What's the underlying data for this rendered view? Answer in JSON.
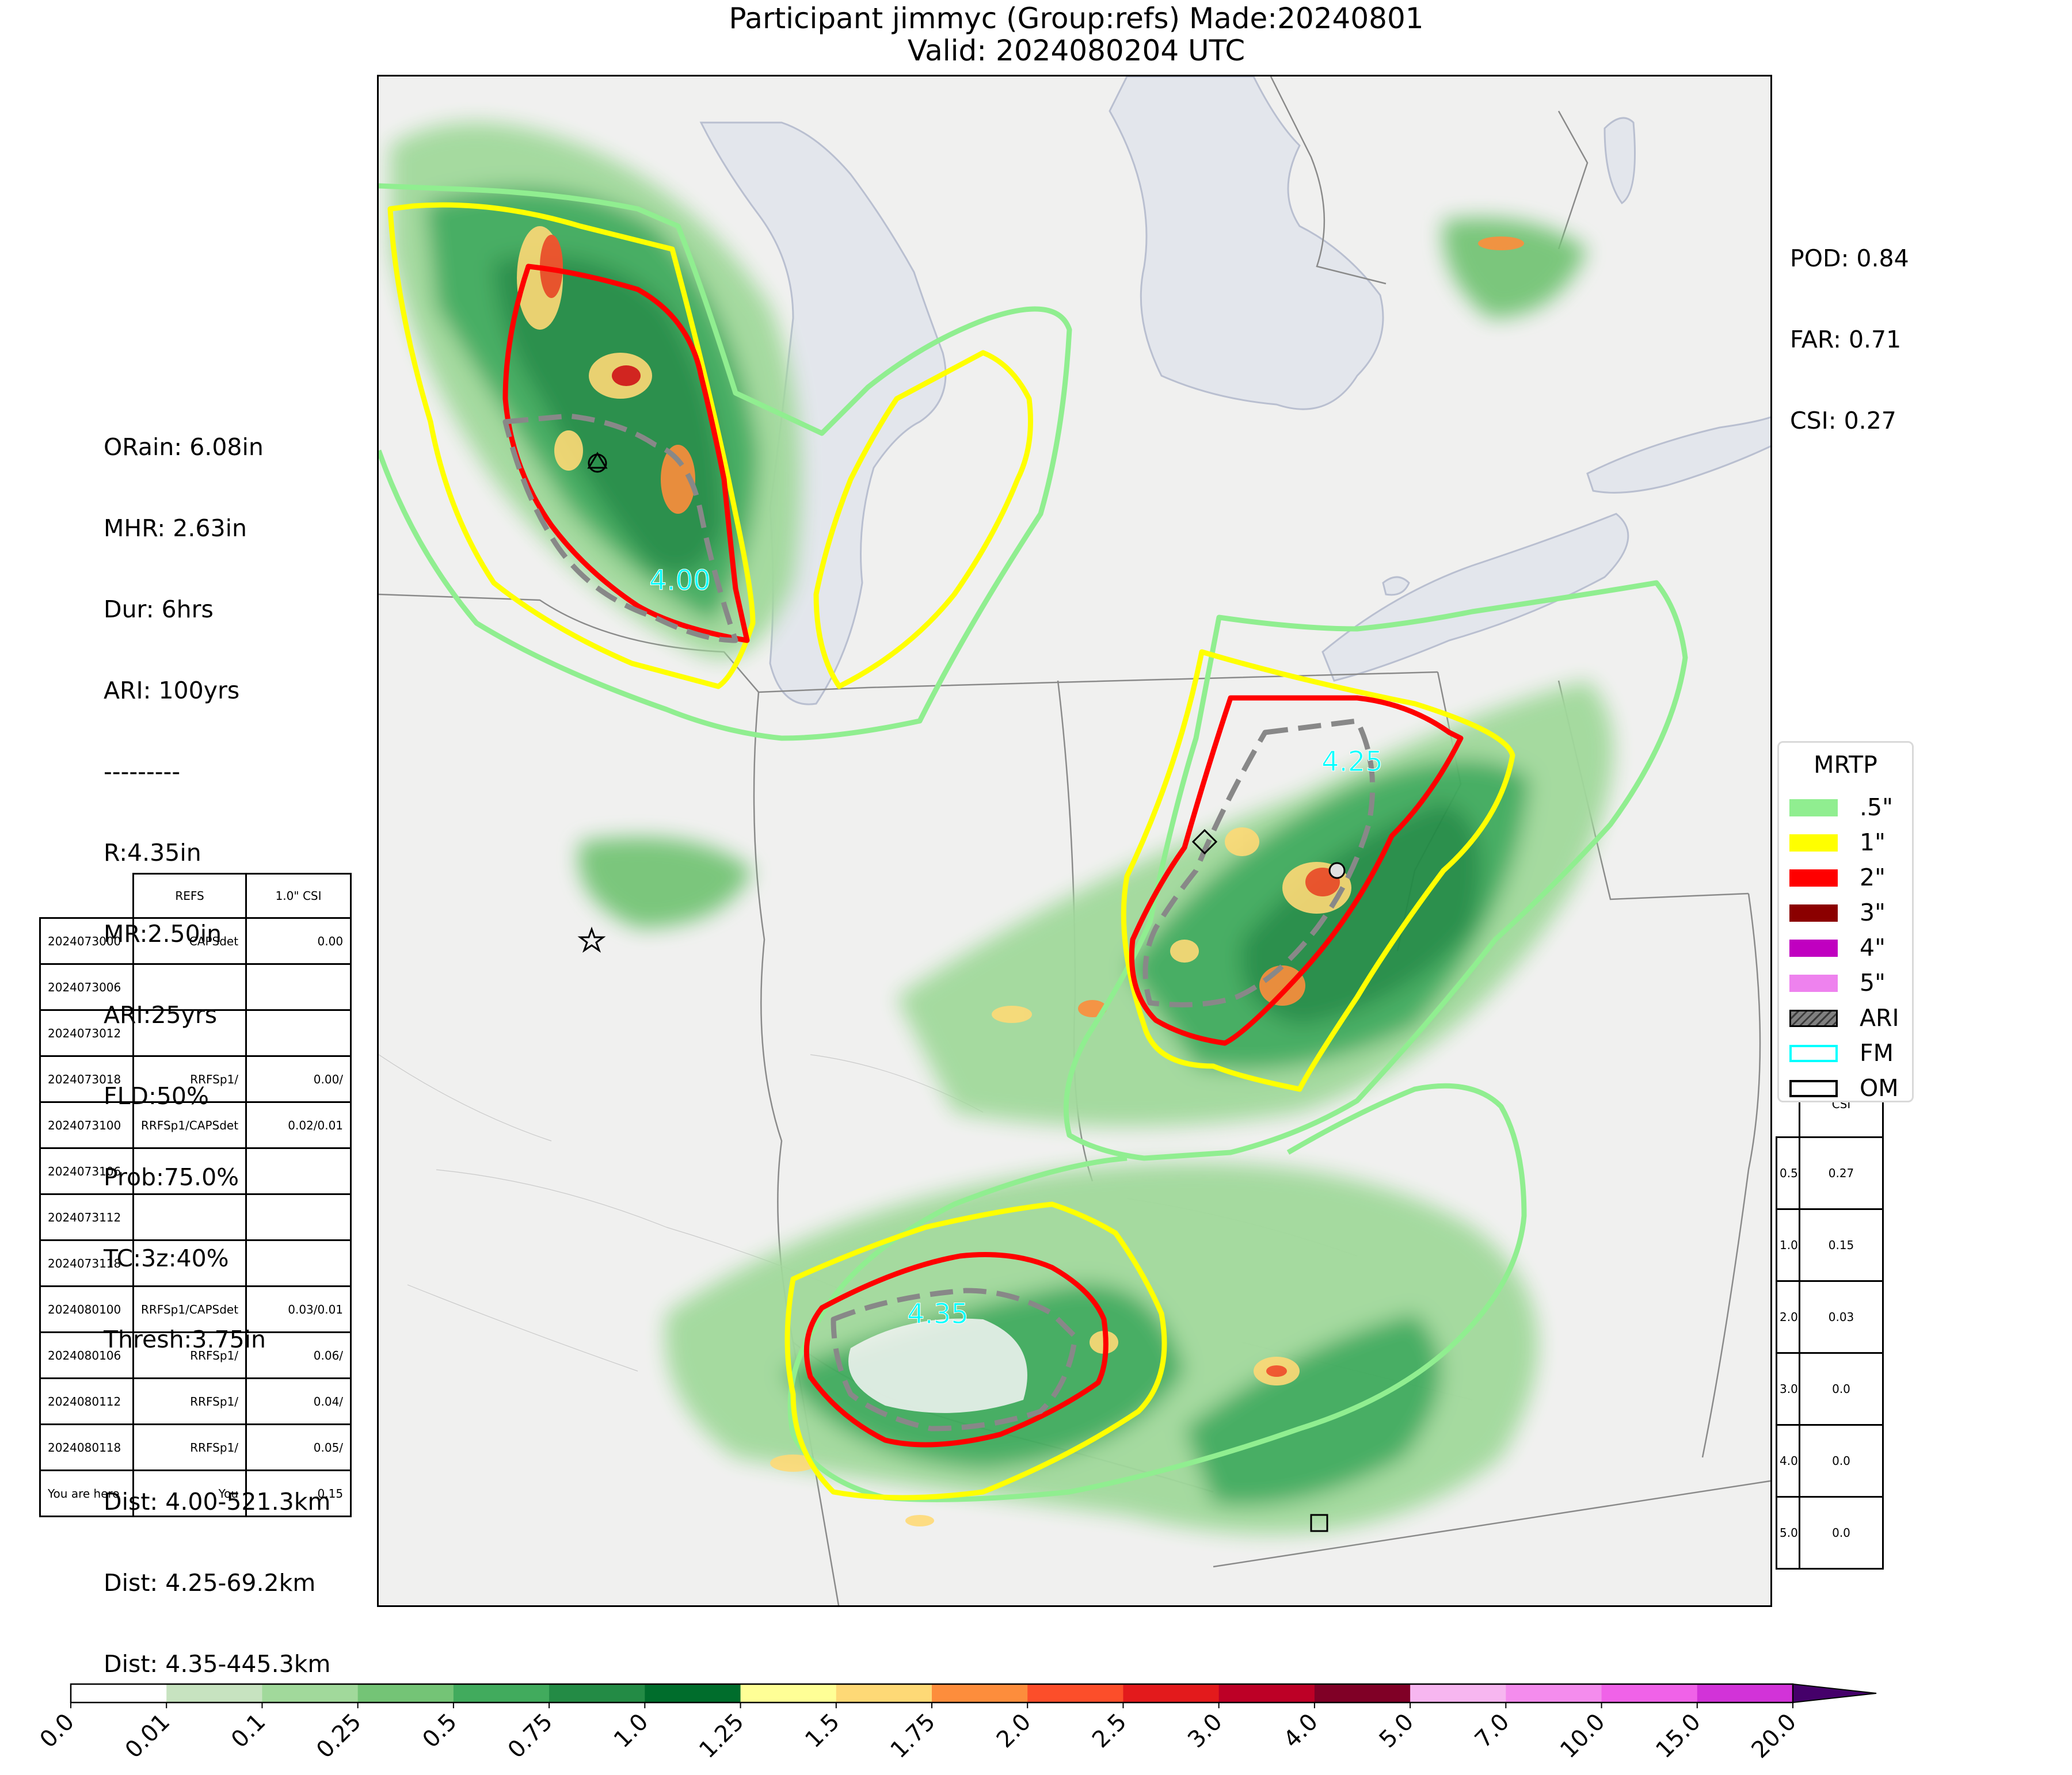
{
  "title": {
    "line1": "Participant jimmyc (Group:refs) Made:20240801",
    "line2": "Valid: 2024080204 UTC"
  },
  "verification": {
    "pod": "POD: 0.84",
    "far": "FAR: 0.71",
    "csi": "CSI: 0.27"
  },
  "observations": {
    "orain": "ORain: 6.08in",
    "mhr": "MHR: 2.63in",
    "dur": "Dur: 6hrs",
    "ari": "ARI: 100yrs",
    "sep": "---------",
    "r": "R:4.35in",
    "mr": "MR:2.50in",
    "ari2": "ARI:25yrs",
    "fld": "FLD:50%",
    "prob": "Prob:75.0%",
    "tc": "TC:3z:40%",
    "thresh": "Thresh:3.75in",
    "dist1": "Dist: 4.00-521.3km",
    "dist2": "Dist: 4.25-69.2km",
    "dist3": "Dist: 4.35-445.3km"
  },
  "refs_table": {
    "headers": [
      "REFS",
      "1.0\" CSI"
    ],
    "rows": [
      [
        "2024073000",
        "CAPSdet",
        "0.00"
      ],
      [
        "2024073006",
        "",
        ""
      ],
      [
        "2024073012",
        "",
        ""
      ],
      [
        "2024073018",
        "RRFSp1/",
        "0.00/"
      ],
      [
        "2024073100",
        "RRFSp1/CAPSdet",
        "0.02/0.01"
      ],
      [
        "2024073106",
        "",
        ""
      ],
      [
        "2024073112",
        "",
        ""
      ],
      [
        "2024073118",
        "",
        ""
      ],
      [
        "2024080100",
        "RRFSp1/CAPSdet",
        "0.03/0.01"
      ],
      [
        "2024080106",
        "RRFSp1/",
        "0.06/"
      ],
      [
        "2024080112",
        "RRFSp1/",
        "0.04/"
      ],
      [
        "2024080118",
        "RRFSp1/",
        "0.05/"
      ],
      [
        "You are here",
        "You",
        "0.15"
      ]
    ]
  },
  "csi_table": {
    "header": "CSI",
    "rows": [
      [
        "0.5",
        "0.27"
      ],
      [
        "1.0",
        "0.15"
      ],
      [
        "2.0",
        "0.03"
      ],
      [
        "3.0",
        "0.0"
      ],
      [
        "4.0",
        "0.0"
      ],
      [
        "5.0",
        "0.0"
      ]
    ]
  },
  "legend": {
    "title": "MRTP",
    "items": [
      {
        "label": ".5\"",
        "color": "#90ee90",
        "style": "fill"
      },
      {
        "label": "1\"",
        "color": "#ffff00",
        "style": "fill"
      },
      {
        "label": "2\"",
        "color": "#ff0000",
        "style": "fill"
      },
      {
        "label": "3\"",
        "color": "#8b0000",
        "style": "fill"
      },
      {
        "label": "4\"",
        "color": "#c000c0",
        "style": "fill"
      },
      {
        "label": "5\"",
        "color": "#ee82ee",
        "style": "fill"
      },
      {
        "label": "ARI",
        "color": "#808080",
        "style": "hatch"
      },
      {
        "label": "FM",
        "color": "#00ffff",
        "style": "outline"
      },
      {
        "label": "OM",
        "color": "#000000",
        "style": "outline"
      }
    ]
  },
  "contour_labels": [
    "4.00",
    "4.25",
    "4.35"
  ],
  "colorbar": {
    "ticks": [
      "0.0",
      "0.01",
      "0.1",
      "0.25",
      "0.5",
      "0.75",
      "1.0",
      "1.25",
      "1.5",
      "1.75",
      "2.0",
      "2.5",
      "3.0",
      "4.0",
      "5.0",
      "7.0",
      "10.0",
      "15.0",
      "20.0"
    ],
    "colors": [
      "#ffffff",
      "#c7e3c0",
      "#a1d99b",
      "#74c476",
      "#41ab5d",
      "#238b45",
      "#006d2c",
      "#ffff96",
      "#fed976",
      "#fd8d3c",
      "#fc4e2a",
      "#e31a1c",
      "#bd0026",
      "#800026",
      "#f7b6f0",
      "#f48ced",
      "#f062e8",
      "#d233d8",
      "#9b30d0"
    ],
    "extend_color": "#45006a"
  }
}
